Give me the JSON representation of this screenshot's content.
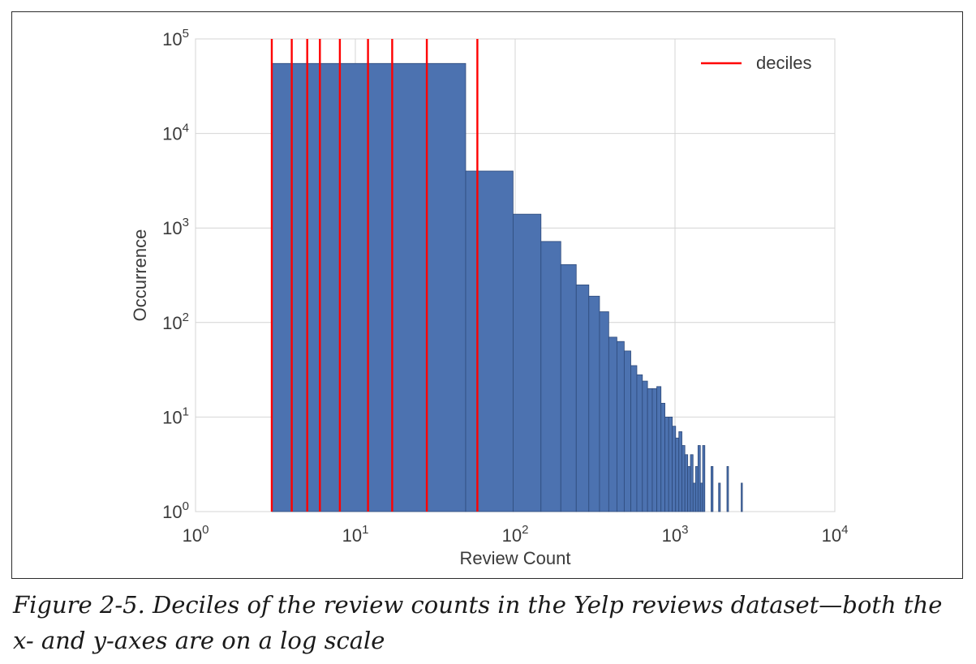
{
  "chart_data": {
    "type": "bar",
    "title": "",
    "xlabel": "Review Count",
    "ylabel": "Occurrence",
    "x_scale": "log",
    "y_scale": "log",
    "xlim": [
      1,
      10000
    ],
    "ylim": [
      1,
      100000
    ],
    "x_ticks": [
      {
        "base": "10",
        "exp": "0"
      },
      {
        "base": "10",
        "exp": "1"
      },
      {
        "base": "10",
        "exp": "2"
      },
      {
        "base": "10",
        "exp": "3"
      },
      {
        "base": "10",
        "exp": "4"
      }
    ],
    "y_ticks": [
      {
        "base": "10",
        "exp": "0"
      },
      {
        "base": "10",
        "exp": "1"
      },
      {
        "base": "10",
        "exp": "2"
      },
      {
        "base": "10",
        "exp": "3"
      },
      {
        "base": "10",
        "exp": "4"
      },
      {
        "base": "10",
        "exp": "5"
      }
    ],
    "grid": true,
    "bar_color": "#4c72b0",
    "bar_edge_color": "#2e4a7a",
    "bins": [
      {
        "x0": 3,
        "x1": 49,
        "count": 55000
      },
      {
        "x0": 49,
        "x1": 97,
        "count": 4000
      },
      {
        "x0": 97,
        "x1": 145,
        "count": 1400
      },
      {
        "x0": 145,
        "x1": 193,
        "count": 720
      },
      {
        "x0": 193,
        "x1": 241,
        "count": 410
      },
      {
        "x0": 241,
        "x1": 289,
        "count": 250
      },
      {
        "x0": 289,
        "x1": 337,
        "count": 190
      },
      {
        "x0": 337,
        "x1": 385,
        "count": 130
      },
      {
        "x0": 385,
        "x1": 433,
        "count": 70
      },
      {
        "x0": 433,
        "x1": 481,
        "count": 63
      },
      {
        "x0": 481,
        "x1": 529,
        "count": 50
      },
      {
        "x0": 529,
        "x1": 577,
        "count": 35
      },
      {
        "x0": 577,
        "x1": 625,
        "count": 28
      },
      {
        "x0": 625,
        "x1": 673,
        "count": 24
      },
      {
        "x0": 673,
        "x1": 721,
        "count": 20
      },
      {
        "x0": 721,
        "x1": 769,
        "count": 20
      },
      {
        "x0": 769,
        "x1": 817,
        "count": 21
      },
      {
        "x0": 817,
        "x1": 865,
        "count": 14
      },
      {
        "x0": 865,
        "x1": 913,
        "count": 10
      },
      {
        "x0": 913,
        "x1": 961,
        "count": 10
      },
      {
        "x0": 961,
        "x1": 1009,
        "count": 8
      },
      {
        "x0": 1009,
        "x1": 1057,
        "count": 6
      },
      {
        "x0": 1057,
        "x1": 1105,
        "count": 7
      },
      {
        "x0": 1105,
        "x1": 1153,
        "count": 5
      },
      {
        "x0": 1153,
        "x1": 1201,
        "count": 4
      },
      {
        "x0": 1201,
        "x1": 1249,
        "count": 3
      },
      {
        "x0": 1249,
        "x1": 1297,
        "count": 4
      },
      {
        "x0": 1297,
        "x1": 1345,
        "count": 2
      },
      {
        "x0": 1345,
        "x1": 1393,
        "count": 3
      },
      {
        "x0": 1393,
        "x1": 1441,
        "count": 5
      },
      {
        "x0": 1441,
        "x1": 1489,
        "count": 2
      },
      {
        "x0": 1489,
        "x1": 1537,
        "count": 5
      },
      {
        "x0": 1681,
        "x1": 1729,
        "count": 3
      },
      {
        "x0": 1873,
        "x1": 1921,
        "count": 2
      },
      {
        "x0": 2113,
        "x1": 2161,
        "count": 3
      },
      {
        "x0": 2593,
        "x1": 2641,
        "count": 2
      }
    ],
    "series": [
      {
        "name": "deciles",
        "type": "vline",
        "color": "#ff0000",
        "x": [
          3,
          4,
          5,
          6,
          8,
          12,
          17,
          28,
          58
        ]
      }
    ],
    "legend": {
      "position": "top-right",
      "entries": [
        "deciles"
      ]
    }
  },
  "caption": "Figure 2-5. Deciles of the review counts in the Yelp reviews dataset—both the x- and y-axes are on a log scale"
}
